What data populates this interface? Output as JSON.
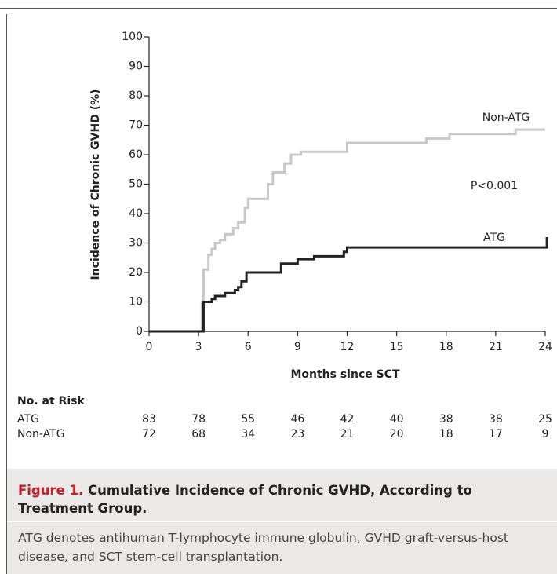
{
  "chart_data": {
    "type": "step",
    "xlabel": "Months since SCT",
    "ylabel": "Incidence of Chronic GVHD (%)",
    "xlim": [
      0,
      24
    ],
    "xticks": [
      0,
      3,
      6,
      9,
      12,
      15,
      18,
      21,
      24
    ],
    "ylim": [
      0,
      100
    ],
    "yticks": [
      0,
      10,
      20,
      30,
      40,
      50,
      60,
      70,
      80,
      90,
      100
    ],
    "series": [
      {
        "name": "Non-ATG",
        "color": "#c8c8c8",
        "x": [
          0,
          3.2,
          3.3,
          3.6,
          3.8,
          4.0,
          4.3,
          4.6,
          5.1,
          5.4,
          5.8,
          6.0,
          7.2,
          7.5,
          8.2,
          8.6,
          9.2,
          12.0,
          16.8,
          18.2,
          22.2,
          24.0
        ],
        "values": [
          0,
          10,
          21,
          26,
          28,
          30,
          31,
          33,
          35,
          37,
          42,
          45,
          50,
          54,
          57,
          60,
          61,
          64,
          65.5,
          67,
          68.5,
          68.5
        ]
      },
      {
        "name": "ATG",
        "color": "#222222",
        "x": [
          0,
          3.2,
          3.3,
          3.8,
          4.0,
          4.6,
          5.2,
          5.4,
          5.6,
          5.9,
          8.0,
          9.0,
          10.0,
          11.8,
          12.0,
          24.0,
          24.1
        ],
        "values": [
          0,
          0,
          10,
          11,
          12,
          13,
          14,
          15,
          17,
          20,
          23,
          24.5,
          25.5,
          27,
          28.5,
          28.5,
          32
        ]
      }
    ],
    "annotations": [
      "P<0.001"
    ],
    "risk_table": {
      "title": "No. at Risk",
      "rows": [
        {
          "name": "ATG",
          "values": [
            83,
            78,
            55,
            46,
            42,
            40,
            38,
            38,
            25
          ]
        },
        {
          "name": "Non-ATG",
          "values": [
            72,
            68,
            34,
            23,
            21,
            20,
            18,
            17,
            9
          ]
        }
      ]
    },
    "caption": {
      "label": "Figure 1.",
      "title": "Cumulative Incidence of Chronic GVHD, According to Treatment Group.",
      "text": "ATG denotes antihuman T-lymphocyte immune globulin, GVHD graft-versus-host disease, and SCT stem-cell transplantation."
    }
  }
}
